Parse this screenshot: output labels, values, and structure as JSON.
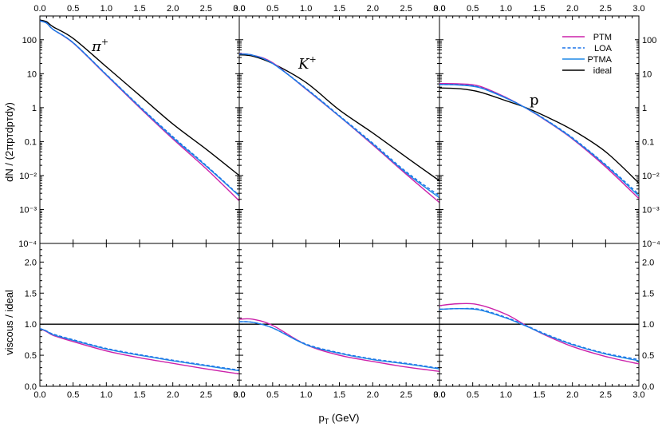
{
  "chart_data": {
    "type": "line",
    "xlabel_main": "p",
    "xlabel_sub": "T",
    "xlabel_unit": " (GeV)",
    "ylabel_top": "dN / (2πpᴛdpᴛdy)",
    "ylabel_bottom": "viscous / ideal",
    "x_ticks": [
      "0.0",
      "0.5",
      "1.0",
      "1.5",
      "2.0",
      "2.5",
      "3.0"
    ],
    "top_y_ticks": [
      "10⁻⁴",
      "10⁻³",
      "10⁻²",
      "0.1",
      "1",
      "10",
      "100"
    ],
    "bottom_y_ticks": [
      "0.0",
      "0.5",
      "1.0",
      "1.5",
      "2.0"
    ],
    "xlim": [
      0,
      3
    ],
    "top_ylim_log10": [
      -4,
      2.7
    ],
    "bottom_ylim": [
      0,
      2.3
    ],
    "legend": [
      {
        "label": "PTM",
        "color": "#cc22aa",
        "dash": false
      },
      {
        "label": "LOA",
        "color": "#1a73e8",
        "dash": true
      },
      {
        "label": "PTMA",
        "color": "#1e88e5",
        "dash": false
      },
      {
        "label": "ideal",
        "color": "#000000",
        "dash": false
      }
    ],
    "panels": [
      {
        "particle": "π",
        "charge": "+",
        "x": [
          0,
          0.1,
          0.2,
          0.5,
          1.0,
          1.5,
          2.0,
          2.5,
          3.0
        ],
        "top": {
          "ideal": [
            380,
            340,
            240,
            110,
            16,
            2.3,
            0.33,
            0.06,
            0.01
          ],
          "PTM": [
            360,
            310,
            200,
            80,
            9,
            1.0,
            0.12,
            0.016,
            0.0018
          ],
          "LOA": [
            360,
            310,
            200,
            82,
            9.5,
            1.1,
            0.14,
            0.02,
            0.0026
          ],
          "PTMA": [
            360,
            310,
            200,
            82,
            9.3,
            1.06,
            0.13,
            0.019,
            0.0025
          ]
        },
        "bottom": {
          "ideal": [
            1,
            1,
            1,
            1,
            1,
            1,
            1,
            1,
            1
          ],
          "PTM": [
            0.93,
            0.88,
            0.82,
            0.72,
            0.57,
            0.46,
            0.37,
            0.28,
            0.2
          ],
          "LOA": [
            0.93,
            0.89,
            0.84,
            0.75,
            0.61,
            0.51,
            0.42,
            0.34,
            0.26
          ],
          "PTMA": [
            0.93,
            0.89,
            0.83,
            0.74,
            0.6,
            0.5,
            0.41,
            0.33,
            0.25
          ]
        }
      },
      {
        "particle": "K",
        "charge": "+",
        "x": [
          0,
          0.2,
          0.5,
          1.0,
          1.5,
          2.0,
          2.5,
          3.0
        ],
        "top": {
          "ideal": [
            36,
            33,
            20,
            5.5,
            0.85,
            0.18,
            0.035,
            0.007
          ],
          "PTM": [
            39,
            35,
            21,
            3.5,
            0.55,
            0.08,
            0.011,
            0.0016
          ],
          "LOA": [
            38,
            35,
            20,
            3.7,
            0.58,
            0.09,
            0.013,
            0.0025
          ],
          "PTMA": [
            38,
            35,
            20,
            3.6,
            0.56,
            0.085,
            0.012,
            0.0022
          ]
        },
        "bottom": {
          "ideal": [
            1,
            1,
            1,
            1,
            1,
            1,
            1,
            1
          ],
          "PTM": [
            1.08,
            1.08,
            0.98,
            0.67,
            0.5,
            0.4,
            0.31,
            0.24
          ],
          "LOA": [
            1.04,
            1.03,
            0.94,
            0.68,
            0.54,
            0.44,
            0.37,
            0.29
          ],
          "PTMA": [
            1.04,
            1.03,
            0.94,
            0.67,
            0.53,
            0.43,
            0.36,
            0.28
          ]
        }
      },
      {
        "particle": "p",
        "charge": "",
        "x": [
          0,
          0.3,
          0.6,
          1.0,
          1.3,
          1.6,
          2.0,
          2.5,
          3.0
        ],
        "top": {
          "ideal": [
            3.8,
            3.6,
            2.9,
            1.6,
            1.0,
            0.55,
            0.22,
            0.05,
            0.006
          ],
          "PTM": [
            5.1,
            5.0,
            4.3,
            2.0,
            0.97,
            0.42,
            0.12,
            0.018,
            0.0021
          ],
          "LOA": [
            4.8,
            4.7,
            4.0,
            1.95,
            0.98,
            0.44,
            0.13,
            0.021,
            0.0028
          ],
          "PTMA": [
            4.8,
            4.6,
            3.9,
            1.9,
            0.97,
            0.43,
            0.125,
            0.02,
            0.0025
          ]
        },
        "bottom": {
          "ideal": [
            1,
            1,
            1,
            1,
            1,
            1,
            1,
            1,
            1
          ],
          "PTM": [
            1.3,
            1.33,
            1.31,
            1.16,
            0.98,
            0.82,
            0.64,
            0.48,
            0.36
          ],
          "LOA": [
            1.24,
            1.25,
            1.24,
            1.11,
            0.98,
            0.84,
            0.68,
            0.53,
            0.43
          ],
          "PTMA": [
            1.24,
            1.25,
            1.23,
            1.1,
            0.97,
            0.83,
            0.67,
            0.52,
            0.41
          ]
        }
      }
    ]
  }
}
